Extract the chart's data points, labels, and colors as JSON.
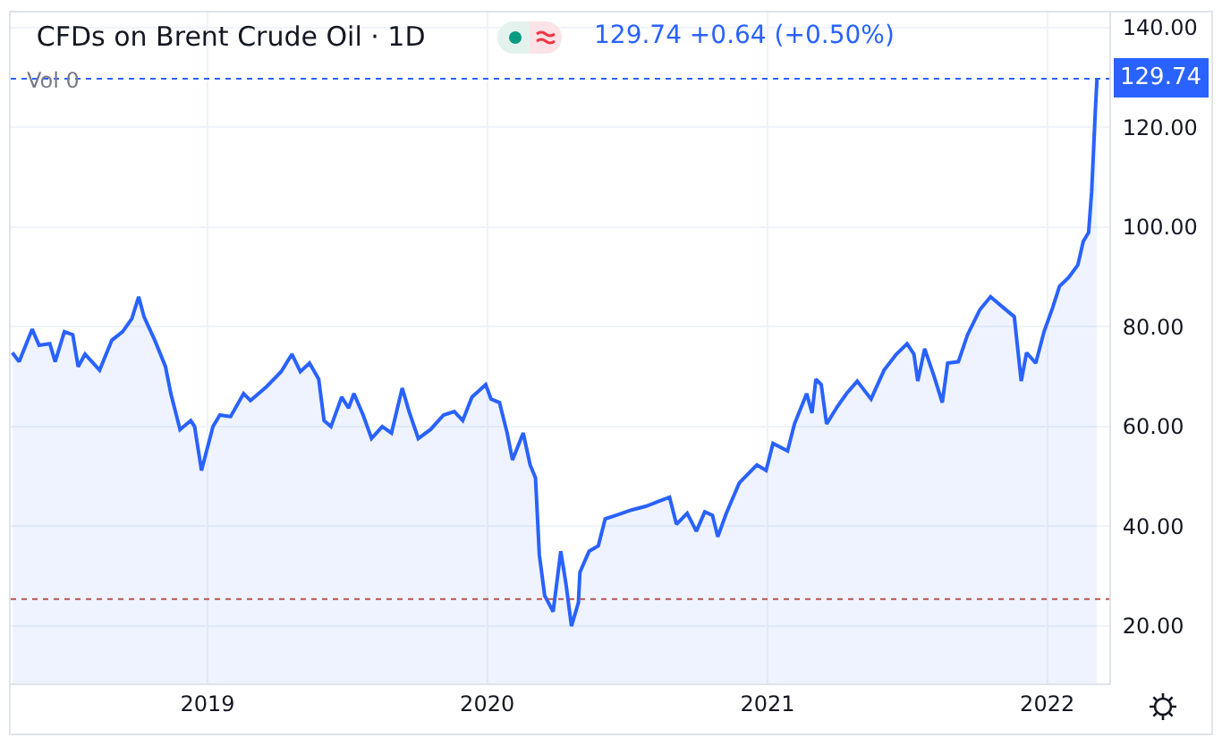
{
  "chart_data": {
    "type": "area",
    "title": "CFDs on Brent Crude Oil · 1D",
    "annotations": [
      "129.74 +0.64 (+0.50%)",
      "Vol 0"
    ],
    "x": [
      "2018-04-21",
      "2018-04-30",
      "2018-05-17",
      "2018-05-26",
      "2018-06-09",
      "2018-06-16",
      "2018-06-28",
      "2018-07-09",
      "2018-07-16",
      "2018-07-25",
      "2018-08-13",
      "2018-08-29",
      "2018-09-12",
      "2018-09-24",
      "2018-10-03",
      "2018-10-10",
      "2018-10-24",
      "2018-11-07",
      "2018-11-14",
      "2018-11-26",
      "2018-12-10",
      "2018-12-15",
      "2018-12-24",
      "2019-01-08",
      "2019-01-17",
      "2019-01-31",
      "2019-02-17",
      "2019-02-26",
      "2019-03-19",
      "2019-04-07",
      "2019-04-21",
      "2019-05-02",
      "2019-05-14",
      "2019-05-26",
      "2019-06-02",
      "2019-06-11",
      "2019-06-25",
      "2019-07-04",
      "2019-07-11",
      "2019-07-23",
      "2019-08-03",
      "2019-08-17",
      "2019-08-29",
      "2019-09-12",
      "2019-09-21",
      "2019-10-03",
      "2019-10-19",
      "2019-11-05",
      "2019-11-19",
      "2019-11-30",
      "2019-12-12",
      "2019-12-30",
      "2020-01-06",
      "2020-01-17",
      "2020-01-27",
      "2020-02-03",
      "2020-02-17",
      "2020-02-26",
      "2020-03-04",
      "2020-03-09",
      "2020-03-16",
      "2020-03-27",
      "2020-04-06",
      "2020-04-13",
      "2020-04-20",
      "2020-04-29",
      "2020-05-01",
      "2020-05-13",
      "2020-05-25",
      "2020-06-03",
      "2020-06-17",
      "2020-07-08",
      "2020-07-26",
      "2020-08-12",
      "2020-08-26",
      "2020-09-04",
      "2020-09-18",
      "2020-09-30",
      "2020-10-11",
      "2020-10-21",
      "2020-10-28",
      "2020-11-08",
      "2020-11-25",
      "2020-12-18",
      "2020-12-30",
      "2021-01-08",
      "2021-01-27",
      "2021-02-05",
      "2021-02-21",
      "2021-02-28",
      "2021-03-05",
      "2021-03-12",
      "2021-03-19",
      "2021-04-02",
      "2021-04-14",
      "2021-04-28",
      "2021-05-16",
      "2021-06-02",
      "2021-06-18",
      "2021-07-02",
      "2021-07-11",
      "2021-07-16",
      "2021-07-25",
      "2021-08-06",
      "2021-08-17",
      "2021-08-24",
      "2021-09-07",
      "2021-09-19",
      "2021-10-05",
      "2021-10-19",
      "2021-11-05",
      "2021-11-19",
      "2021-11-28",
      "2021-12-05",
      "2021-12-17",
      "2021-12-28",
      "2022-01-08",
      "2022-01-17",
      "2022-01-29",
      "2022-02-10",
      "2022-02-17",
      "2022-02-24",
      "2022-02-28",
      "2022-03-05",
      "2022-03-07"
    ],
    "series": [
      {
        "color": "#2962ff",
        "values": [
          74.8,
          73,
          79.5,
          76.3,
          76.6,
          73,
          79,
          78.4,
          72,
          74.5,
          71.3,
          77.3,
          79,
          81.6,
          86,
          82,
          77.3,
          72,
          66.6,
          59.4,
          61.2,
          60,
          51.2,
          60,
          62.3,
          62,
          66.6,
          65.2,
          68,
          71,
          74.5,
          71,
          72.7,
          69.5,
          61.2,
          60,
          65.9,
          63.7,
          66.6,
          62.3,
          57.6,
          60,
          58.7,
          67.7,
          63,
          57.6,
          59.4,
          62.3,
          63,
          61.2,
          65.9,
          68.4,
          65.5,
          64.8,
          58.7,
          53.3,
          58.7,
          52.3,
          49.7,
          34.3,
          26.1,
          22.9,
          35,
          28.2,
          20,
          24.7,
          30.8,
          35,
          36.1,
          41.5,
          42.2,
          43.3,
          44,
          45,
          45.8,
          40.4,
          42.6,
          39,
          42.9,
          42.2,
          37.9,
          42.6,
          48.7,
          52.3,
          51.2,
          56.6,
          55.1,
          60.5,
          66.6,
          62.7,
          69.5,
          68.4,
          60.5,
          64,
          66.6,
          69.1,
          65.5,
          71.3,
          74.5,
          76.6,
          74.5,
          69.1,
          75.6,
          70.2,
          64.8,
          72.7,
          73,
          78.4,
          83.4,
          86,
          83.8,
          82,
          69.1,
          74.8,
          72.7,
          79.1,
          83.8,
          88.1,
          89.9,
          92.4,
          97.1,
          98.9,
          107.1,
          124,
          129.74
        ]
      }
    ],
    "xlim": [
      "2018-04-19",
      "2022-03-23"
    ],
    "xticks": [
      {
        "value": "2019-01-01",
        "label": "2019"
      },
      {
        "value": "2020-01-01",
        "label": "2020"
      },
      {
        "value": "2021-01-01",
        "label": "2021"
      },
      {
        "value": "2022-01-01",
        "label": "2022"
      }
    ],
    "ylim": [
      8.5,
      143
    ],
    "yticks": [
      {
        "value": 20,
        "label": "20.00"
      },
      {
        "value": 40,
        "label": "40.00"
      },
      {
        "value": 60,
        "label": "60.00"
      },
      {
        "value": 80,
        "label": "80.00"
      },
      {
        "value": 100,
        "label": "100.00"
      },
      {
        "value": 120,
        "label": "120.00"
      },
      {
        "value": 140,
        "label": "140.00"
      }
    ],
    "ref_lines": [
      {
        "axis": "y",
        "value": 129.74,
        "label": "129.74",
        "color": "#2962ff",
        "line_style": "dotted"
      },
      {
        "axis": "y",
        "value": 25.4,
        "color": "#b85450",
        "line_style": "dotted"
      }
    ],
    "grid": true
  }
}
